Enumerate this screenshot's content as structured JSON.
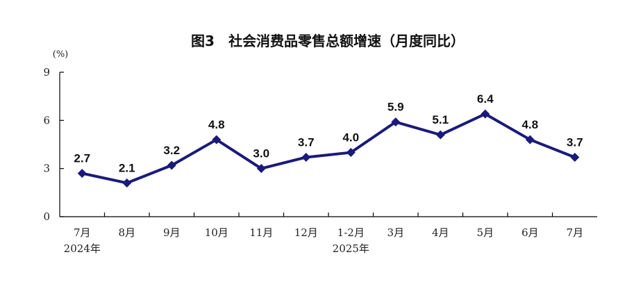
{
  "chart_data": {
    "type": "line",
    "title": "图3　社会消费品零售总额增速（月度同比）",
    "ylabel": "(%)",
    "xlabel": "",
    "ylim": [
      0,
      9
    ],
    "yticks": [
      "0",
      "3",
      "6",
      "9"
    ],
    "ytick_values": [
      0,
      3,
      6,
      9
    ],
    "categories": [
      "7月",
      "8月",
      "9月",
      "10月",
      "11月",
      "12月",
      "1-2月",
      "3月",
      "4月",
      "5月",
      "6月",
      "7月"
    ],
    "year_labels": [
      {
        "text": "2024年",
        "index": 0
      },
      {
        "text": "2025年",
        "index": 6
      }
    ],
    "series": [
      {
        "values": [
          2.7,
          2.1,
          3.2,
          4.8,
          3.0,
          3.7,
          4.0,
          5.9,
          5.1,
          6.4,
          4.8,
          3.7
        ],
        "labels": [
          "2.7",
          "2.1",
          "3.2",
          "4.8",
          "3.0",
          "3.7",
          "4.0",
          "5.9",
          "5.1",
          "6.4",
          "4.8",
          "3.7"
        ],
        "color": "#1a1a7a",
        "marker": "diamond"
      }
    ],
    "grid": false,
    "legend": "none"
  }
}
